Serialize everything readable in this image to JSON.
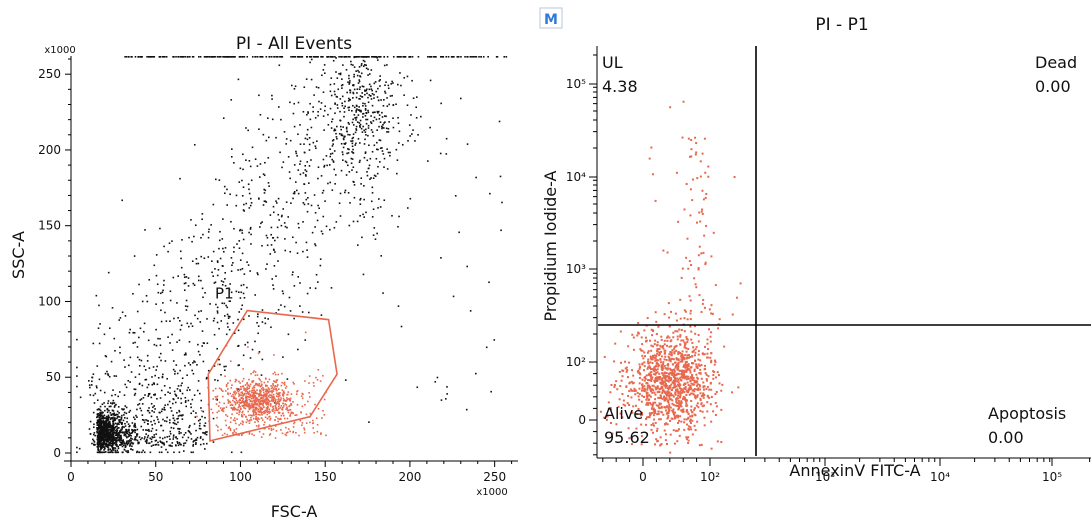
{
  "chart_data": [
    {
      "type": "scatter",
      "title": "PI - All Events",
      "xlabel": "FSC-A",
      "ylabel": "SSC-A",
      "x_multiplier": "x1000",
      "y_multiplier": "x1000",
      "xlim": [
        0,
        262
      ],
      "ylim": [
        0,
        262
      ],
      "xticks": [
        "0",
        "50",
        "100",
        "150",
        "200",
        "250"
      ],
      "yticks": [
        "0",
        "50",
        "100",
        "150",
        "200",
        "250"
      ],
      "grid": false,
      "colors": {
        "events": "#111111",
        "gated": "#e8684e",
        "gate": "#e8684e"
      },
      "gate": {
        "name": "P1",
        "label_pos": [
          85,
          102
        ],
        "vertices": [
          [
            104,
            94
          ],
          [
            152,
            88
          ],
          [
            157,
            52
          ],
          [
            141,
            24
          ],
          [
            82,
            8
          ],
          [
            81,
            52
          ]
        ]
      },
      "series": [
        {
          "name": "",
          "color": "#111111",
          "description_clusters": "debris near origin (~15,15), diagonal spread to (~170,230), saturated row at 262"
        },
        {
          "name": "P1",
          "color": "#e8684e",
          "description_clusters": "dense cluster centered near (110,35) inside P1 gate"
        }
      ]
    },
    {
      "type": "scatter",
      "title": "PI - P1",
      "badge": "M",
      "xlabel": "AnnexinV FITC-A",
      "ylabel": "Propidium Iodide-A",
      "x_scale": "biexponential",
      "y_scale": "biexponential",
      "xticks": [
        "0",
        "10²",
        "10³",
        "10⁴",
        "10⁵"
      ],
      "yticks": [
        "0",
        "10²",
        "10³",
        "10⁴",
        "10⁵"
      ],
      "grid": false,
      "quadrant_threshold": {
        "x": 250,
        "y": 250
      },
      "quadrants": [
        {
          "name": "UL",
          "value": "4.38",
          "position": "top-left"
        },
        {
          "name": "Dead",
          "value": "0.00",
          "position": "top-right"
        },
        {
          "name": "Alive",
          "value": "95.62",
          "position": "bottom-left"
        },
        {
          "name": "Apoptosis",
          "value": "0.00",
          "position": "bottom-right"
        }
      ],
      "series": [
        {
          "name": "P1",
          "color": "#e8684e",
          "description_clusters": "main cluster near x≈30, y≈50 (alive); sparse tail upward to 10⁵ at x≈50–100"
        }
      ]
    }
  ]
}
